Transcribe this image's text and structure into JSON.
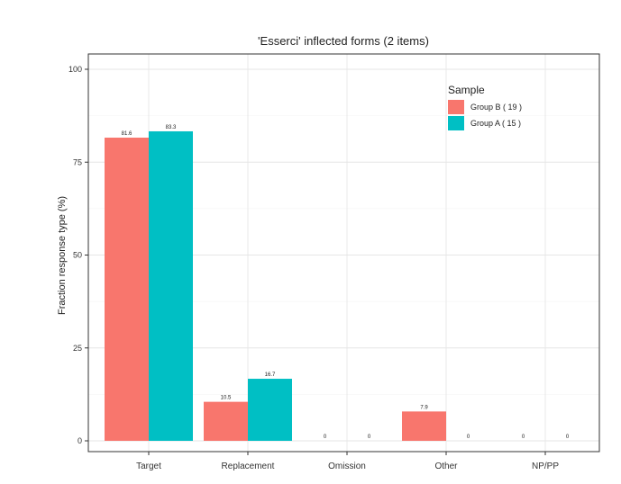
{
  "chart_data": {
    "type": "bar",
    "title": "'Esserci' inflected forms (2 items)",
    "xlabel": "",
    "ylabel": "Fraction response type (%)",
    "categories": [
      "Target",
      "Replacement",
      "Omission",
      "Other",
      "NP/PP"
    ],
    "series": [
      {
        "name": "Group B ( 19 )",
        "color": "#F8766D",
        "values": [
          81.6,
          10.5,
          0,
          7.9,
          0
        ],
        "labels": [
          "81.6",
          "10.5",
          "0",
          "7.9",
          "0"
        ]
      },
      {
        "name": "Group A ( 15 )",
        "color": "#00BFC4",
        "values": [
          83.3,
          16.7,
          0,
          0,
          0
        ],
        "labels": [
          "83.3",
          "16.7",
          "0",
          "0",
          "0"
        ]
      }
    ],
    "ylim": [
      0,
      100
    ],
    "yticks": [
      0,
      25,
      50,
      75,
      100
    ],
    "legend": {
      "title": "Sample",
      "position": "top-right"
    },
    "grid": true
  }
}
